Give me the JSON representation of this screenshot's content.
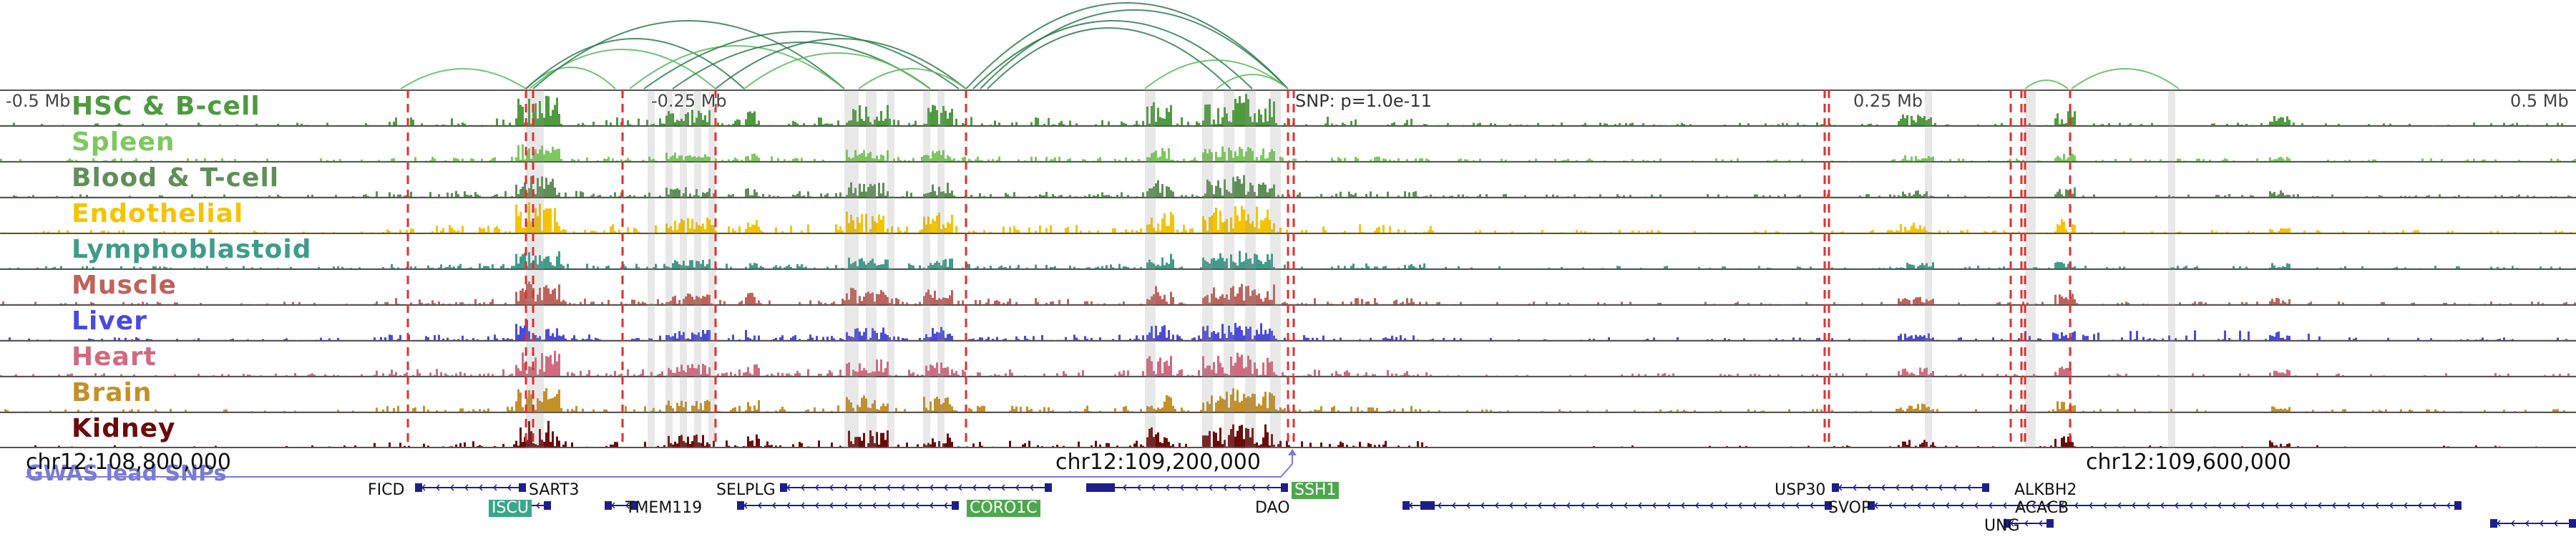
{
  "axis": {
    "top_ticks": [
      "-0.5 Mb",
      "-0.25 Mb",
      "0.25 Mb",
      "0.5 Mb"
    ],
    "coordinates": [
      "chr12:108,800,000",
      "chr12:109,200,000",
      "chr12:109,600,000"
    ]
  },
  "snp_label": "SNP: p=1.0e-11",
  "tracks": [
    {
      "label": "HSC & B-cell",
      "color": "#4e9a3e"
    },
    {
      "label": "Spleen",
      "color": "#7dc95e"
    },
    {
      "label": "Blood & T-cell",
      "color": "#5f8f57"
    },
    {
      "label": "Endothelial",
      "color": "#f5c400"
    },
    {
      "label": "Lymphoblastoid",
      "color": "#3f9c8a"
    },
    {
      "label": "Muscle",
      "color": "#c0625a"
    },
    {
      "label": "Liver",
      "color": "#4a4ae0"
    },
    {
      "label": "Heart",
      "color": "#d16a80"
    },
    {
      "label": "Brain",
      "color": "#c49028"
    },
    {
      "label": "Kidney",
      "color": "#6b0a0a"
    }
  ],
  "gwas": {
    "label": "GWAS lead SNPs",
    "color": "#7b7bd6"
  },
  "genes": [
    {
      "name": "FICD",
      "highlight": ""
    },
    {
      "name": "SART3",
      "highlight": ""
    },
    {
      "name": "ISCU",
      "highlight": "teal"
    },
    {
      "name": "SELPLG",
      "highlight": ""
    },
    {
      "name": "TMEM119",
      "highlight": ""
    },
    {
      "name": "CORO1C",
      "highlight": "green"
    },
    {
      "name": "SSH1",
      "highlight": "green"
    },
    {
      "name": "DAO",
      "highlight": ""
    },
    {
      "name": "USP30",
      "highlight": ""
    },
    {
      "name": "SVOP",
      "highlight": ""
    },
    {
      "name": "ALKBH2",
      "highlight": ""
    },
    {
      "name": "ACACB",
      "highlight": ""
    },
    {
      "name": "UNG",
      "highlight": ""
    }
  ]
}
